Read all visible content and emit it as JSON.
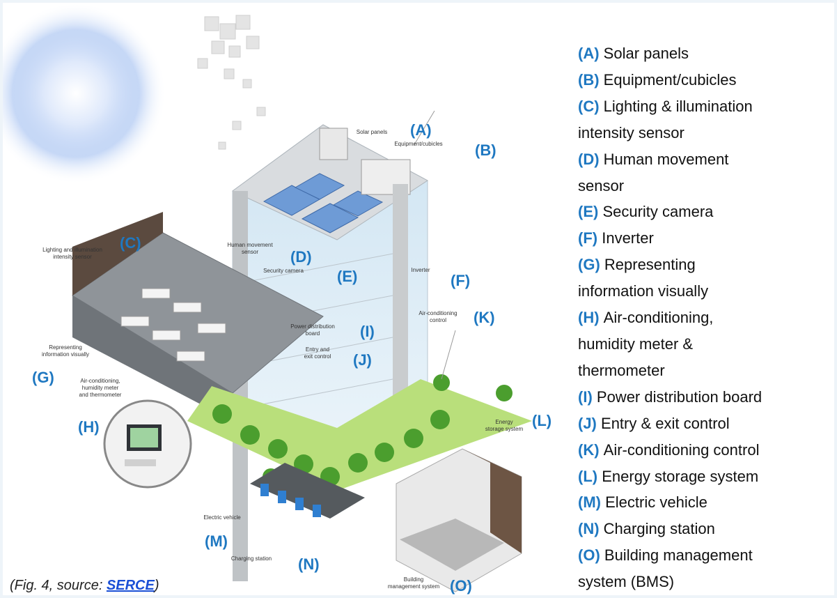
{
  "callouts": [
    "(A)",
    "(B)",
    "(C)",
    "(D)",
    "(E)",
    "(F)",
    "(G)",
    "(H)",
    "(I)",
    "(J)",
    "(K)",
    "(L)",
    "(M)",
    "(N)",
    "(O)"
  ],
  "labels": [
    {
      "lines": [
        "Solar panels"
      ]
    },
    {
      "lines": [
        "Equipment/cubicles"
      ]
    },
    {
      "lines": [
        "Lighting and illumination",
        "intensity sensor"
      ]
    },
    {
      "lines": [
        "Human movement",
        "sensor"
      ]
    },
    {
      "lines": [
        "Security camera"
      ]
    },
    {
      "lines": [
        "Inverter"
      ]
    },
    {
      "lines": [
        "Air-conditioning",
        "control"
      ]
    },
    {
      "lines": [
        "Power distribution",
        "board"
      ]
    },
    {
      "lines": [
        "Entry and",
        "exit control"
      ]
    },
    {
      "lines": [
        "Representing",
        "information visually"
      ]
    },
    {
      "lines": [
        "Air-conditioning,",
        "humidity meter",
        "and thermometer"
      ]
    },
    {
      "lines": [
        "Energy",
        "storage system"
      ]
    },
    {
      "lines": [
        "Electric vehicle"
      ]
    },
    {
      "lines": [
        "Charging station"
      ]
    },
    {
      "lines": [
        "Building",
        "management system"
      ]
    }
  ],
  "legend": [
    {
      "letter": "(A)",
      "lines": [
        "Solar panels"
      ]
    },
    {
      "letter": "(B)",
      "lines": [
        "Equipment/cubicles"
      ]
    },
    {
      "letter": "(C)",
      "lines": [
        "Lighting & illumination",
        "intensity sensor"
      ]
    },
    {
      "letter": "(D)",
      "lines": [
        "Human movement",
        "sensor"
      ]
    },
    {
      "letter": "(E)",
      "lines": [
        "Security camera"
      ]
    },
    {
      "letter": "(F)",
      "lines": [
        "Inverter"
      ]
    },
    {
      "letter": "(G)",
      "lines": [
        "Representing",
        "information visually"
      ]
    },
    {
      "letter": "(H)",
      "lines": [
        "Air-conditioning,",
        "humidity meter &",
        "thermometer"
      ]
    },
    {
      "letter": "(I)",
      "lines": [
        "Power distribution board"
      ]
    },
    {
      "letter": "(J)",
      "lines": [
        "Entry & exit control"
      ]
    },
    {
      "letter": "(K)",
      "lines": [
        "Air-conditioning control"
      ]
    },
    {
      "letter": "(L)",
      "lines": [
        "Energy storage system"
      ]
    },
    {
      "letter": "(M)",
      "lines": [
        "Electric vehicle"
      ]
    },
    {
      "letter": "(N)",
      "lines": [
        "Charging station"
      ]
    },
    {
      "letter": "(O)",
      "lines": [
        "Building management",
        "system (BMS)"
      ]
    }
  ],
  "caption": {
    "prefix": "(Fig. 4, source: ",
    "link": "SERCE",
    "suffix": ")"
  }
}
